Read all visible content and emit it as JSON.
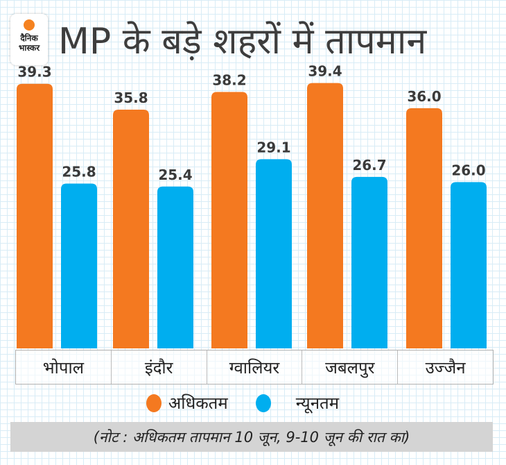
{
  "brand": {
    "line1": "दैनिक",
    "line2": "भास्कर"
  },
  "title": "MP के बड़े शहरों में तापमान",
  "note": "(नोट : अधिकतम तापमान 10 जून, 9-10 जून की रात का)",
  "colors": {
    "max": "#f47920",
    "min": "#00aeef"
  },
  "chart_data": {
    "type": "bar",
    "title": "MP के बड़े शहरों में तापमान",
    "categories": [
      "भोपाल",
      "इंदौर",
      "ग्वालियर",
      "जबलपुर",
      "उज्जैन"
    ],
    "series": [
      {
        "name": "अधिकतम",
        "color": "#f47920",
        "values": [
          39.3,
          35.8,
          38.2,
          39.4,
          36.0
        ]
      },
      {
        "name": "न्यूनतम",
        "color": "#00aeef",
        "values": [
          25.8,
          25.4,
          29.1,
          26.7,
          26.0
        ]
      }
    ],
    "value_labels": {
      "max": [
        "39.3",
        "35.8",
        "38.2",
        "39.4",
        "36.0"
      ],
      "min": [
        "25.8",
        "25.4",
        "29.1",
        "26.7",
        "26.0"
      ]
    },
    "legend": {
      "position": "bottom",
      "entries": [
        "अधिकतम",
        "न्यूनतम"
      ]
    },
    "xlabel": "",
    "ylabel": "",
    "grid": true
  }
}
